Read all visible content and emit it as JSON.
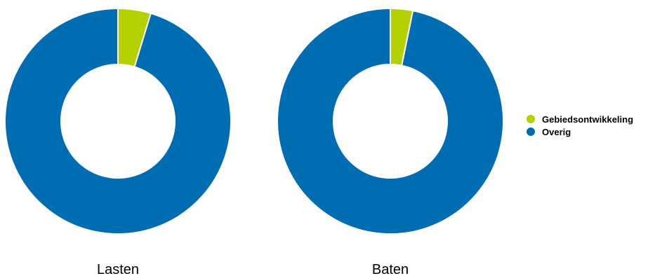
{
  "chart_data": [
    {
      "type": "pie",
      "title": "Lasten",
      "categories": [
        "Gebiedsontwikkeling",
        "Overig"
      ],
      "values": [
        4.7,
        95.3
      ],
      "unit": "%",
      "donut": true
    },
    {
      "type": "pie",
      "title": "Baten",
      "categories": [
        "Gebiedsontwikkeling",
        "Overig"
      ],
      "values": [
        3.2,
        96.8
      ],
      "unit": "%",
      "donut": true
    }
  ],
  "legend": {
    "placement": "right",
    "items": [
      {
        "label": "Gebiedsontwikkeling",
        "color": "#b5d000"
      },
      {
        "label": "Overig",
        "color": "#006cb2"
      }
    ]
  },
  "colors": {
    "Gebiedsontwikkeling": "#b5d000",
    "Overig": "#006cb2",
    "separator": "#ffffff"
  }
}
